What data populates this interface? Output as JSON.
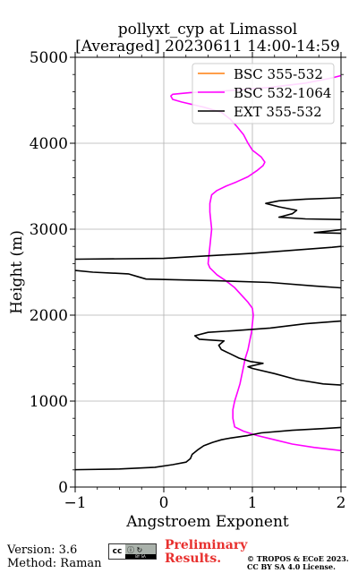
{
  "chart_data": {
    "type": "line",
    "title": "pollyxt_cyp at Limassol",
    "subtitle": "[Averaged] 20230611 14:00-14:59",
    "xlabel": "Angstroem Exponent",
    "ylabel": "Height (m)",
    "xlim": [
      -1,
      2
    ],
    "ylim": [
      0,
      5000
    ],
    "xticks": [
      -1,
      0,
      1,
      2
    ],
    "yticks": [
      0,
      1000,
      2000,
      3000,
      4000,
      5000
    ],
    "grid": true,
    "legend_position": "top-right",
    "series": [
      {
        "name": "BSC 355-532",
        "color": "#ff7f0e",
        "points": []
      },
      {
        "name": "BSC 532-1064",
        "color": "#ff00ff",
        "points": [
          [
            2.2,
            400
          ],
          [
            1.95,
            430
          ],
          [
            1.7,
            460
          ],
          [
            1.45,
            500
          ],
          [
            1.25,
            550
          ],
          [
            1.05,
            600
          ],
          [
            0.9,
            650
          ],
          [
            0.8,
            700
          ],
          [
            0.78,
            800
          ],
          [
            0.78,
            900
          ],
          [
            0.8,
            1000
          ],
          [
            0.83,
            1100
          ],
          [
            0.86,
            1200
          ],
          [
            0.88,
            1300
          ],
          [
            0.9,
            1400
          ],
          [
            0.92,
            1500
          ],
          [
            0.95,
            1600
          ],
          [
            0.97,
            1700
          ],
          [
            0.99,
            1800
          ],
          [
            1.0,
            1900
          ],
          [
            1.01,
            2000
          ],
          [
            1.0,
            2080
          ],
          [
            0.95,
            2150
          ],
          [
            0.88,
            2230
          ],
          [
            0.8,
            2320
          ],
          [
            0.7,
            2400
          ],
          [
            0.6,
            2470
          ],
          [
            0.52,
            2550
          ],
          [
            0.5,
            2600
          ],
          [
            0.51,
            2700
          ],
          [
            0.52,
            2800
          ],
          [
            0.53,
            2900
          ],
          [
            0.54,
            3000
          ],
          [
            0.53,
            3100
          ],
          [
            0.52,
            3200
          ],
          [
            0.52,
            3300
          ],
          [
            0.54,
            3400
          ],
          [
            0.6,
            3450
          ],
          [
            0.7,
            3500
          ],
          [
            0.82,
            3550
          ],
          [
            0.95,
            3610
          ],
          [
            1.05,
            3680
          ],
          [
            1.12,
            3740
          ],
          [
            1.14,
            3780
          ],
          [
            1.1,
            3840
          ],
          [
            1.0,
            3920
          ],
          [
            0.95,
            4000
          ],
          [
            0.9,
            4100
          ],
          [
            0.82,
            4200
          ],
          [
            0.75,
            4280
          ],
          [
            0.65,
            4360
          ],
          [
            0.45,
            4420
          ],
          [
            0.2,
            4480
          ],
          [
            0.1,
            4510
          ],
          [
            0.08,
            4550
          ],
          [
            0.1,
            4570
          ],
          [
            0.3,
            4590
          ],
          [
            0.7,
            4610
          ],
          [
            1.2,
            4650
          ],
          [
            1.6,
            4700
          ],
          [
            1.9,
            4760
          ],
          [
            2.05,
            4800
          ]
        ]
      },
      {
        "name": "EXT 355-532",
        "color": "#000000",
        "points": [
          [
            -1.1,
            200
          ],
          [
            -0.5,
            210
          ],
          [
            -0.1,
            230
          ],
          [
            0.1,
            260
          ],
          [
            0.25,
            290
          ],
          [
            0.3,
            330
          ],
          [
            0.32,
            380
          ],
          [
            0.38,
            430
          ],
          [
            0.45,
            480
          ],
          [
            0.55,
            520
          ],
          [
            0.65,
            550
          ],
          [
            0.75,
            570
          ],
          [
            0.95,
            600
          ],
          [
            1.1,
            630
          ],
          [
            1.45,
            660
          ],
          [
            1.8,
            680
          ],
          [
            2.1,
            700
          ],
          [
            2.1,
            1180
          ],
          [
            1.8,
            1200
          ],
          [
            1.5,
            1250
          ],
          [
            1.25,
            1320
          ],
          [
            1.0,
            1380
          ],
          [
            0.95,
            1400
          ],
          [
            1.12,
            1440
          ],
          [
            0.98,
            1460
          ],
          [
            0.85,
            1500
          ],
          [
            0.75,
            1550
          ],
          [
            0.65,
            1600
          ],
          [
            0.62,
            1650
          ],
          [
            0.68,
            1700
          ],
          [
            0.4,
            1720
          ],
          [
            0.35,
            1760
          ],
          [
            0.5,
            1800
          ],
          [
            0.8,
            1820
          ],
          [
            1.2,
            1850
          ],
          [
            1.6,
            1900
          ],
          [
            2.1,
            1940
          ],
          [
            2.1,
            2310
          ],
          [
            1.7,
            2340
          ],
          [
            1.2,
            2380
          ],
          [
            0.6,
            2400
          ],
          [
            -0.2,
            2420
          ],
          [
            -0.3,
            2450
          ],
          [
            -0.4,
            2480
          ],
          [
            -0.8,
            2500
          ],
          [
            -1.1,
            2530
          ],
          [
            -1.1,
            2650
          ],
          [
            0.0,
            2660
          ],
          [
            1.0,
            2720
          ],
          [
            1.9,
            2790
          ],
          [
            2.1,
            2810
          ],
          [
            2.1,
            2950
          ],
          [
            1.7,
            2960
          ],
          [
            2.05,
            3000
          ],
          [
            2.1,
            3040
          ],
          [
            2.1,
            3110
          ],
          [
            1.6,
            3120
          ],
          [
            1.3,
            3140
          ],
          [
            1.45,
            3180
          ],
          [
            1.5,
            3220
          ],
          [
            1.3,
            3260
          ],
          [
            1.15,
            3300
          ],
          [
            1.3,
            3330
          ],
          [
            1.6,
            3350
          ],
          [
            2.1,
            3370
          ]
        ]
      }
    ]
  },
  "footer": {
    "version": "Version: 3.6",
    "method": "Method: Raman",
    "preliminary_line1": "Preliminary",
    "preliminary_line2": "Results.",
    "copyright_line1": "© TROPOS & ECoE 2023.",
    "copyright_line2": "CC BY SA 4.0 License.",
    "license_badge": "cc",
    "license_badge_strip": "BY  SA"
  }
}
